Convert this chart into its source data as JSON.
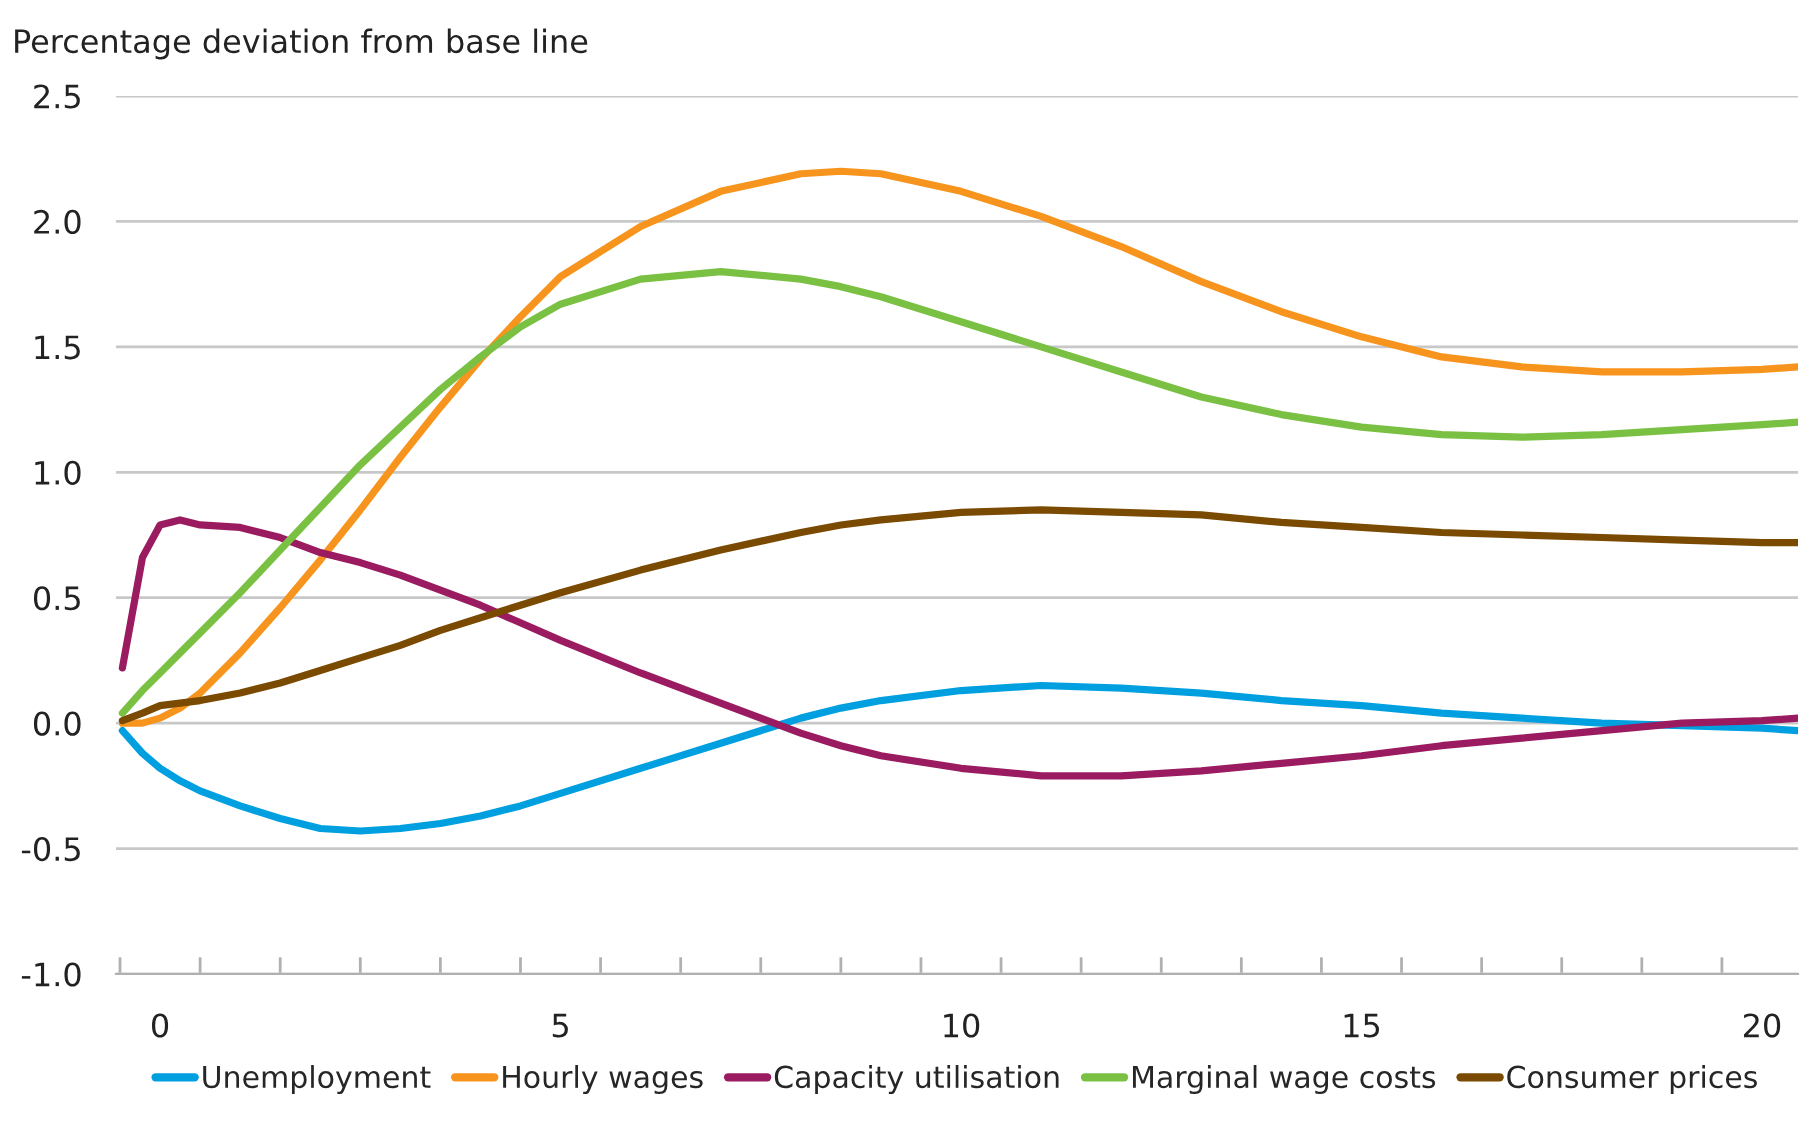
{
  "chart_data": {
    "type": "line",
    "ylabel": "Percentage deviation from base line",
    "x": [
      -0.47,
      -0.22,
      0,
      0.25,
      0.5,
      1,
      1.5,
      2,
      2.5,
      3,
      3.5,
      4,
      4.5,
      5,
      6,
      7,
      8,
      8.5,
      9,
      10,
      11,
      12,
      13,
      14,
      15,
      16,
      17,
      18,
      19,
      20,
      20.45
    ],
    "series": [
      {
        "name": "Unemployment",
        "color": "#009fe0",
        "values": [
          -0.03,
          -0.12,
          -0.18,
          -0.23,
          -0.27,
          -0.33,
          -0.38,
          -0.42,
          -0.43,
          -0.42,
          -0.4,
          -0.37,
          -0.33,
          -0.28,
          -0.18,
          -0.08,
          0.02,
          0.06,
          0.09,
          0.13,
          0.15,
          0.14,
          0.12,
          0.09,
          0.07,
          0.04,
          0.02,
          0.0,
          -0.01,
          -0.02,
          -0.03
        ]
      },
      {
        "name": "Hourly wages",
        "color": "#f7941d",
        "values": [
          0.0,
          0.0,
          0.02,
          0.06,
          0.12,
          0.28,
          0.46,
          0.65,
          0.85,
          1.06,
          1.26,
          1.45,
          1.62,
          1.78,
          1.98,
          2.12,
          2.19,
          2.2,
          2.19,
          2.12,
          2.02,
          1.9,
          1.76,
          1.64,
          1.54,
          1.46,
          1.42,
          1.4,
          1.4,
          1.41,
          1.42
        ]
      },
      {
        "name": "Capacity utilisation",
        "color": "#9b1b60",
        "values": [
          0.22,
          0.66,
          0.79,
          0.81,
          0.79,
          0.78,
          0.74,
          0.68,
          0.64,
          0.59,
          0.53,
          0.47,
          0.4,
          0.33,
          0.2,
          0.08,
          -0.04,
          -0.09,
          -0.13,
          -0.18,
          -0.21,
          -0.21,
          -0.19,
          -0.16,
          -0.13,
          -0.09,
          -0.06,
          -0.03,
          0.0,
          0.01,
          0.02
        ]
      },
      {
        "name": "Marginal wage costs",
        "color": "#7ac143",
        "values": [
          0.04,
          0.13,
          0.2,
          0.28,
          0.36,
          0.52,
          0.69,
          0.86,
          1.03,
          1.18,
          1.33,
          1.46,
          1.58,
          1.67,
          1.77,
          1.8,
          1.77,
          1.74,
          1.7,
          1.6,
          1.5,
          1.4,
          1.3,
          1.23,
          1.18,
          1.15,
          1.14,
          1.15,
          1.17,
          1.19,
          1.2
        ]
      },
      {
        "name": "Consumer prices",
        "color": "#7a4a00",
        "values": [
          0.01,
          0.04,
          0.07,
          0.08,
          0.09,
          0.12,
          0.16,
          0.21,
          0.26,
          0.31,
          0.37,
          0.42,
          0.47,
          0.52,
          0.61,
          0.69,
          0.76,
          0.79,
          0.81,
          0.84,
          0.85,
          0.84,
          0.83,
          0.8,
          0.78,
          0.76,
          0.75,
          0.74,
          0.73,
          0.72,
          0.72
        ]
      }
    ],
    "xlim": [
      -0.55,
      20.45
    ],
    "xticks": [
      {
        "value": -0.5,
        "label": null
      },
      {
        "value": 0,
        "label": "0"
      },
      {
        "value": 0.5,
        "label": null
      },
      {
        "value": 1.5,
        "label": null
      },
      {
        "value": 2.5,
        "label": null
      },
      {
        "value": 3.5,
        "label": null
      },
      {
        "value": 4.5,
        "label": null
      },
      {
        "value": 5,
        "label": "5"
      },
      {
        "value": 5.5,
        "label": null
      },
      {
        "value": 6.5,
        "label": null
      },
      {
        "value": 7.5,
        "label": null
      },
      {
        "value": 8.5,
        "label": null
      },
      {
        "value": 9.5,
        "label": null
      },
      {
        "value": 10,
        "label": "10"
      },
      {
        "value": 10.5,
        "label": null
      },
      {
        "value": 11.5,
        "label": null
      },
      {
        "value": 12.5,
        "label": null
      },
      {
        "value": 13.5,
        "label": null
      },
      {
        "value": 14.5,
        "label": null
      },
      {
        "value": 15,
        "label": "15"
      },
      {
        "value": 15.5,
        "label": null
      },
      {
        "value": 16.5,
        "label": null
      },
      {
        "value": 17.5,
        "label": null
      },
      {
        "value": 18.5,
        "label": null
      },
      {
        "value": 19.5,
        "label": null
      },
      {
        "value": 20,
        "label": "20"
      }
    ],
    "ylim": [
      -1.0,
      2.5
    ],
    "yticks": [
      {
        "value": -1.0,
        "label": "-1.0"
      },
      {
        "value": -0.5,
        "label": "-0.5"
      },
      {
        "value": 0.0,
        "label": "0.0"
      },
      {
        "value": 0.5,
        "label": "0.5"
      },
      {
        "value": 1.0,
        "label": "1.0"
      },
      {
        "value": 1.5,
        "label": "1.5"
      },
      {
        "value": 2.0,
        "label": "2.0"
      },
      {
        "value": 2.5,
        "label": "2.5"
      }
    ],
    "grid": "y",
    "legend": "bottom",
    "marker": "none",
    "line_style": "solid"
  }
}
